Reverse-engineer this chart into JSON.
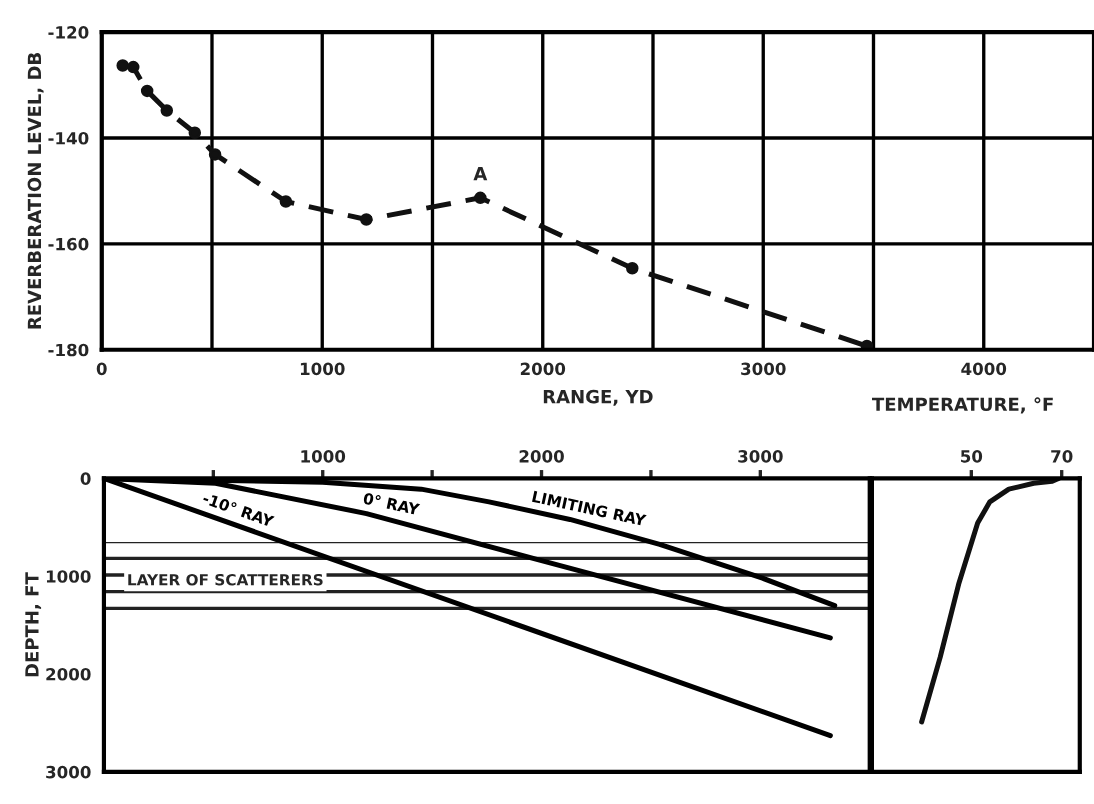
{
  "chart_data": [
    {
      "type": "line",
      "xlabel": "RANGE, YD",
      "ylabel": "REVERBERATION LEVEL, DB",
      "xlim": [
        0,
        4500
      ],
      "xticks": [
        0,
        {
          "value": 500,
          "label": null
        },
        1000,
        {
          "value": 1500,
          "label": null
        },
        2000,
        {
          "value": 2500,
          "label": null
        },
        3000,
        {
          "value": 3500,
          "label": null
        },
        4000
      ],
      "ylim": [
        -180,
        -120
      ],
      "yticks": [
        -180,
        -160,
        -140,
        -120
      ],
      "grid": true,
      "marker": "circle",
      "line_style": "dashed",
      "series": [
        {
          "color": "#111111",
          "x": [
            95,
            143,
            206,
            295,
            422,
            514,
            835,
            1200,
            1717,
            2406,
            3470
          ],
          "values": [
            -126.3,
            -126.6,
            -131.1,
            -134.8,
            -139,
            -143.1,
            -152,
            -155.4,
            -151.3,
            -164.6,
            -179.3
          ]
        }
      ],
      "annotations": [
        {
          "text": "A",
          "x": 1717,
          "y": -151.3
        }
      ]
    },
    {
      "type": "line",
      "ylabel": "DEPTH, FT",
      "xlim": [
        0,
        3500
      ],
      "xticks": [
        {
          "value": 500,
          "label": null
        },
        1000,
        {
          "value": 1500,
          "label": null
        },
        2000,
        {
          "value": 2500,
          "label": null
        },
        3000
      ],
      "ylim": [
        3000,
        0
      ],
      "yticks": [
        0,
        1000,
        2000,
        3000
      ],
      "line_style": "solid",
      "marker": "none",
      "bands": [
        {
          "axis": "y",
          "from": 650,
          "to": 1450,
          "label": "LAYER OF SCATTERERS"
        }
      ],
      "series": [
        {
          "name": "-10° RAY",
          "color": "#000000",
          "x": [
            0,
            3320
          ],
          "values": [
            0,
            2630
          ]
        },
        {
          "name": "0° RAY",
          "color": "#000000",
          "x": [
            0,
            510,
            1200,
            2000,
            3320
          ],
          "values": [
            0,
            50,
            360,
            840,
            1630
          ]
        },
        {
          "name": "LIMITING RAY",
          "color": "#000000",
          "x": [
            0,
            1000,
            1450,
            1760,
            2130,
            2540,
            3010,
            3340
          ],
          "values": [
            0,
            40,
            110,
            240,
            420,
            675,
            1020,
            1300
          ]
        }
      ]
    },
    {
      "type": "line",
      "x2label": "TEMPERATURE, °F",
      "xlim": [
        28,
        74
      ],
      "xticks": [
        50,
        70
      ],
      "ylim": [
        3000,
        0
      ],
      "yticks": [
        0,
        1000,
        2000,
        3000
      ],
      "tick_labels": "x",
      "line_style": "solid",
      "marker": "none",
      "series": [
        {
          "color": "#111111",
          "x": [
            39,
            43.1,
            47.2,
            51.4,
            54.1,
            58.3,
            63.8,
            67.9,
            69.3
          ],
          "values": [
            2490,
            1830,
            1080,
            455,
            240,
            110,
            50,
            30,
            0
          ]
        }
      ]
    }
  ]
}
